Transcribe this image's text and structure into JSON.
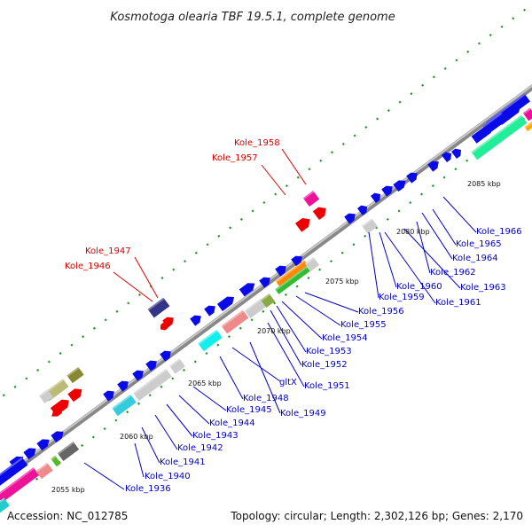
{
  "title": "Kosmotoga olearia TBF 19.5.1, complete genome",
  "footer": {
    "accession": "Accession: NC_012785",
    "topology": "Topology: circular; Length: 2,302,126 bp; Genes: 2,170"
  },
  "colors": {
    "label_top": "#dd0000",
    "label_bottom": "#0000cc",
    "backbone": "#999999",
    "tick": "#119911"
  },
  "kbp_markers": [
    "2055 kbp",
    "2060 kbp",
    "2065 kbp",
    "2070 kbp",
    "2075 kbp",
    "2080 kbp",
    "2085 kbp"
  ],
  "top_labels": [
    "Kole_1958",
    "Kole_1957",
    "Kole_1947",
    "Kole_1946"
  ],
  "bottom_labels": [
    "Kole_1936",
    "Kole_1940",
    "Kole_1941",
    "Kole_1942",
    "Kole_1943",
    "Kole_1944",
    "Kole_1945",
    "Kole_1948",
    "gltX",
    "Kole_1949",
    "Kole_1951",
    "Kole_1952",
    "Kole_1953",
    "Kole_1954",
    "Kole_1955",
    "Kole_1956",
    "Kole_1959",
    "Kole_1960",
    "Kole_1961",
    "Kole_1963",
    "Kole_1962",
    "Kole_1964",
    "Kole_1965",
    "Kole_1966"
  ]
}
